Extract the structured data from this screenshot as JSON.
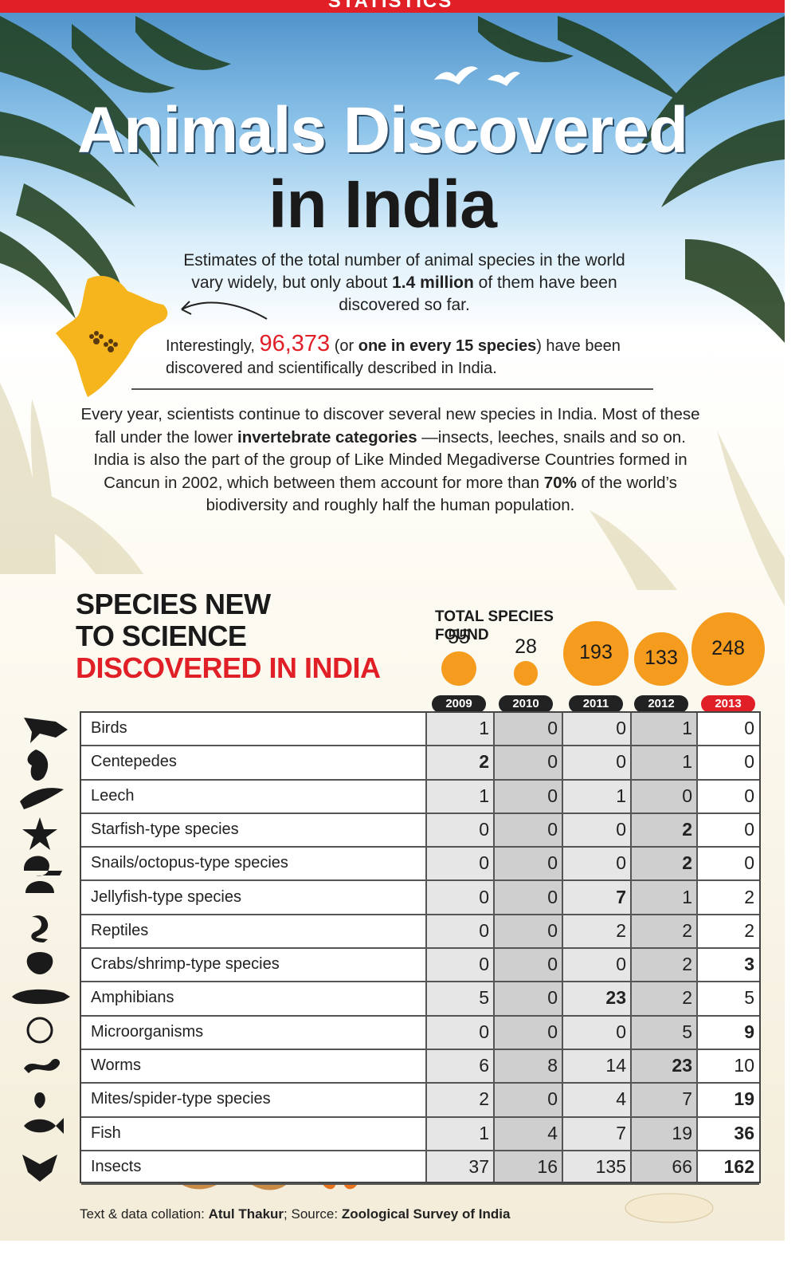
{
  "banner": {
    "label": "STATISTICS"
  },
  "title": {
    "line1": "Animals Discovered",
    "line2": "in India"
  },
  "intro": {
    "p1_a": "Estimates of the total number of animal species in the world vary widely, but only about ",
    "p1_bold": "1.4 million",
    "p1_b": " of them have been discovered so far.",
    "p2_a": "Interestingly, ",
    "p2_num": "96,373",
    "p2_b": " (or ",
    "p2_bold": "one in every 15 species",
    "p2_c": ") have been discovered and scientifically described in India.",
    "p3_a": "Every year, scientists continue to discover several new species in India. Most of these fall under the lower ",
    "p3_bold1": "invertebrate categories",
    "p3_b": " —insects, leeches, snails and so on. India is also the part of the group of Like Minded Megadiverse Countries formed in Cancun in 2002, which between them account for more than ",
    "p3_bold2": "70%",
    "p3_c": " of the world’s biodiversity and roughly half the human population."
  },
  "section": {
    "line1": "SPECIES NEW",
    "line2": "TO SCIENCE",
    "line3": "DISCOVERED IN INDIA"
  },
  "totals_label": "TOTAL SPECIES FOUND",
  "footer": {
    "a": "Text & data collation: ",
    "b": "Atul Thakur",
    "c": "; Source: ",
    "d": "Zoological Survey of India"
  },
  "colors": {
    "accent": "#e01f26",
    "bubble": "#f59b1e"
  },
  "chart_data": {
    "type": "table",
    "title": "SPECIES NEW TO SCIENCE DISCOVERED IN INDIA",
    "years": [
      "2009",
      "2010",
      "2011",
      "2012",
      "2013"
    ],
    "totals": [
      55,
      28,
      193,
      133,
      248
    ],
    "categories": [
      "Birds",
      "Centepedes",
      "Leech",
      "Starfish-type species",
      "Snails/octopus-type species",
      "Jellyfish-type species",
      "Reptiles",
      "Crabs/shrimp-type species",
      "Amphibians",
      "Microorganisms",
      "Worms",
      "Mites/spider-type species",
      "Fish",
      "Insects"
    ],
    "rows": [
      [
        1,
        0,
        0,
        1,
        0
      ],
      [
        2,
        0,
        0,
        1,
        0
      ],
      [
        1,
        0,
        1,
        0,
        0
      ],
      [
        0,
        0,
        0,
        2,
        0
      ],
      [
        0,
        0,
        0,
        2,
        0
      ],
      [
        0,
        0,
        7,
        1,
        2
      ],
      [
        0,
        0,
        2,
        2,
        2
      ],
      [
        0,
        0,
        0,
        2,
        3
      ],
      [
        5,
        0,
        23,
        2,
        5
      ],
      [
        0,
        0,
        0,
        5,
        9
      ],
      [
        6,
        8,
        14,
        23,
        10
      ],
      [
        2,
        0,
        4,
        7,
        19
      ],
      [
        1,
        4,
        7,
        19,
        36
      ],
      [
        37,
        16,
        135,
        66,
        162
      ]
    ],
    "highlighted_cells": [
      [
        1,
        0
      ],
      [
        3,
        3
      ],
      [
        4,
        3
      ],
      [
        5,
        2
      ],
      [
        7,
        4
      ],
      [
        8,
        2
      ],
      [
        9,
        4
      ],
      [
        10,
        3
      ],
      [
        11,
        4
      ],
      [
        12,
        4
      ],
      [
        13,
        4
      ]
    ],
    "highlight_year": "2013"
  }
}
